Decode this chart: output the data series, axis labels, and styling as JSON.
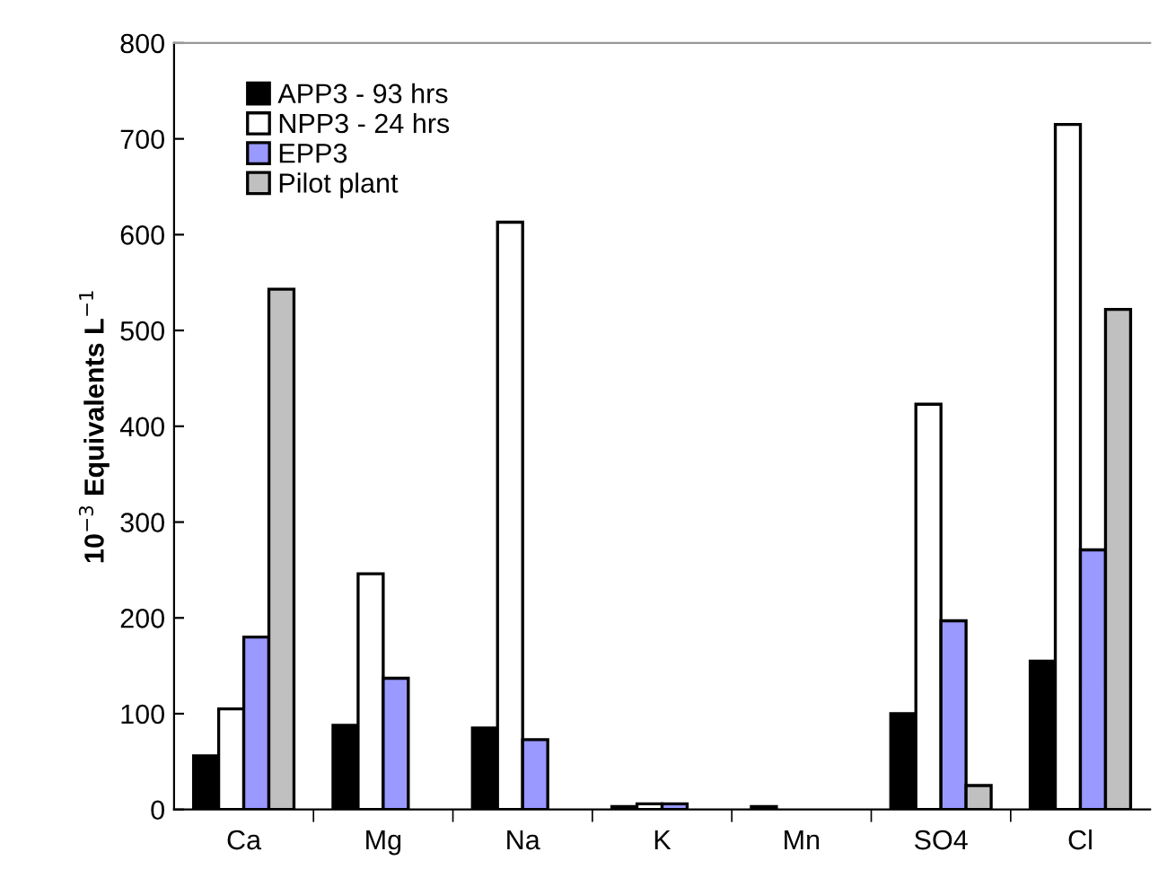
{
  "chart_data": {
    "type": "bar",
    "ylabel": "10$^{−3}$ Equivalents L$^{−1}$",
    "categories": [
      "Ca",
      "Mg",
      "Na",
      "K",
      "Mn",
      "SO4",
      "Cl"
    ],
    "series": [
      {
        "name": "APP3 - 93 hrs",
        "color": "#000000",
        "values": [
          56,
          88,
          85,
          3,
          3,
          100,
          155
        ]
      },
      {
        "name": "NPP3 - 24 hrs",
        "color": "#ffffff",
        "values": [
          105,
          246,
          613,
          6,
          null,
          423,
          715
        ]
      },
      {
        "name": "EPP3",
        "color": "#9999ff",
        "values": [
          180,
          137,
          73,
          6,
          null,
          197,
          271
        ]
      },
      {
        "name": "Pilot plant",
        "color": "#c0c0c0",
        "values": [
          543,
          null,
          null,
          null,
          null,
          25,
          522
        ]
      }
    ],
    "ylim": [
      0,
      800
    ],
    "yticks": [
      0,
      100,
      200,
      300,
      400,
      500,
      600,
      700,
      800
    ],
    "grid": false,
    "legend": "top left"
  }
}
